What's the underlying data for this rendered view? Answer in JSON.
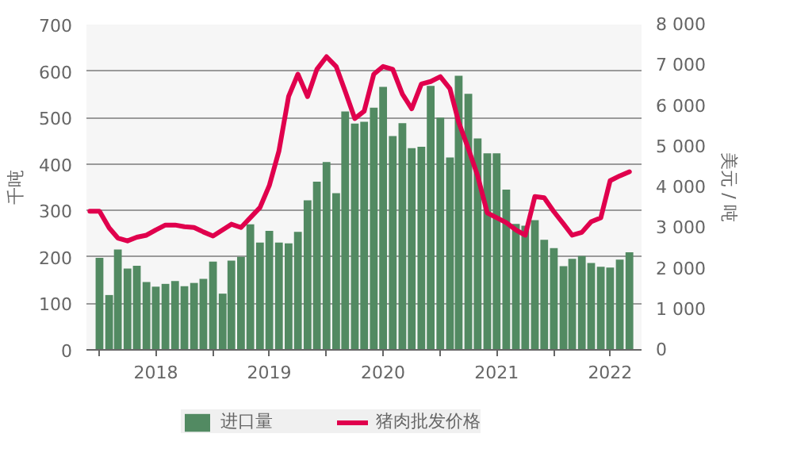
{
  "chart_data": {
    "type": "bar",
    "ylabel": "千吨",
    "y2label": "美元 / 吨",
    "x": [
      "2018-01",
      "2018-02",
      "2018-03",
      "2018-04",
      "2018-05",
      "2018-06",
      "2018-07",
      "2018-08",
      "2018-09",
      "2018-10",
      "2018-11",
      "2018-12",
      "2019-01",
      "2019-02",
      "2019-03",
      "2019-04",
      "2019-05",
      "2019-06",
      "2019-07",
      "2019-08",
      "2019-09",
      "2019-10",
      "2019-11",
      "2019-12",
      "2020-01",
      "2020-02",
      "2020-03",
      "2020-04",
      "2020-05",
      "2020-06",
      "2020-07",
      "2020-08",
      "2020-09",
      "2020-10",
      "2020-11",
      "2020-12",
      "2021-01",
      "2021-02",
      "2021-03",
      "2021-04",
      "2021-05",
      "2021-06",
      "2021-07",
      "2021-08",
      "2021-09",
      "2021-10",
      "2021-11",
      "2021-12",
      "2022-01",
      "2022-02",
      "2022-03",
      "2022-04",
      "2022-05",
      "2022-06",
      "2022-07",
      "2022-08",
      "2022-09"
    ],
    "series": [
      {
        "name": "进口量",
        "color": "#528a62",
        "values": [
          198,
          118,
          216,
          175,
          181,
          146,
          136,
          142,
          148,
          137,
          144,
          153,
          190,
          121,
          192,
          200,
          270,
          231,
          256,
          231,
          229,
          254,
          322,
          362,
          404,
          337,
          513,
          487,
          491,
          521,
          566,
          460,
          488,
          434,
          437,
          568,
          500,
          414,
          590,
          551,
          455,
          423,
          423,
          345,
          271,
          267,
          279,
          237,
          219,
          180,
          196,
          202,
          187,
          179,
          177,
          194,
          210
        ]
      },
      {
        "name": "猪肉批发价格",
        "type": "line",
        "axis": "y2",
        "color": "#e0004d",
        "x": [
          "2017-12",
          "2018-01",
          "2018-02",
          "2018-03",
          "2018-04",
          "2018-05",
          "2018-06",
          "2018-07",
          "2018-08",
          "2018-09",
          "2018-10",
          "2018-11",
          "2018-12",
          "2019-01",
          "2019-02",
          "2019-03",
          "2019-04",
          "2019-05",
          "2019-06",
          "2019-07",
          "2019-08",
          "2019-09",
          "2019-10",
          "2019-11",
          "2019-12",
          "2020-01",
          "2020-02",
          "2020-03",
          "2020-04",
          "2020-05",
          "2020-06",
          "2020-07",
          "2020-08",
          "2020-09",
          "2020-10",
          "2020-11",
          "2020-12",
          "2021-01",
          "2021-02",
          "2021-03",
          "2021-04",
          "2021-05",
          "2021-06",
          "2021-07",
          "2021-08",
          "2021-09",
          "2021-10",
          "2021-11",
          "2021-12",
          "2022-01",
          "2022-02",
          "2022-03",
          "2022-04",
          "2022-05",
          "2022-06",
          "2022-07",
          "2022-08",
          "2022-09"
        ],
        "values": [
          3410,
          3410,
          3000,
          2750,
          2680,
          2770,
          2820,
          2950,
          3070,
          3070,
          3030,
          3010,
          2900,
          2800,
          2950,
          3090,
          3010,
          3250,
          3500,
          4040,
          4890,
          6230,
          6780,
          6230,
          6900,
          7210,
          6970,
          6360,
          5690,
          5870,
          6780,
          6970,
          6900,
          6290,
          5930,
          6540,
          6600,
          6720,
          6420,
          5600,
          4950,
          4280,
          3370,
          3250,
          3130,
          2950,
          2820,
          3770,
          3740,
          3400,
          3100,
          2820,
          2890,
          3150,
          3250,
          4160,
          4280,
          4380
        ]
      }
    ],
    "xlim": [
      "2017-11-20",
      "2022-10-10"
    ],
    "xticks": [
      {
        "value": "2018-01-01",
        "label": null
      },
      {
        "value": "2018-07-01",
        "label": "2018"
      },
      {
        "value": "2019-01-01",
        "label": null
      },
      {
        "value": "2019-07-01",
        "label": "2019"
      },
      {
        "value": "2020-01-01",
        "label": null
      },
      {
        "value": "2020-07-01",
        "label": "2020"
      },
      {
        "value": "2021-01-01",
        "label": null
      },
      {
        "value": "2021-07-01",
        "label": "2021"
      },
      {
        "value": "2022-01-01",
        "label": null
      },
      {
        "value": "2022-07-01",
        "label": "2022"
      }
    ],
    "ylim": [
      0,
      700
    ],
    "yticks": [
      0,
      100,
      200,
      300,
      400,
      500,
      600,
      700
    ],
    "y2lim": [
      0,
      8000
    ],
    "y2ticks": [
      0,
      {
        "value": 1000,
        "label": "1 000"
      },
      {
        "value": 2000,
        "label": "2 000"
      },
      {
        "value": 3000,
        "label": "3 000"
      },
      {
        "value": 4000,
        "label": "4 000"
      },
      {
        "value": 5000,
        "label": "5 000"
      },
      {
        "value": 6000,
        "label": "6 000"
      },
      {
        "value": 7000,
        "label": "7 000"
      },
      {
        "value": 8000,
        "label": "8 000"
      }
    ],
    "grid": "y",
    "legend": "bottom"
  }
}
